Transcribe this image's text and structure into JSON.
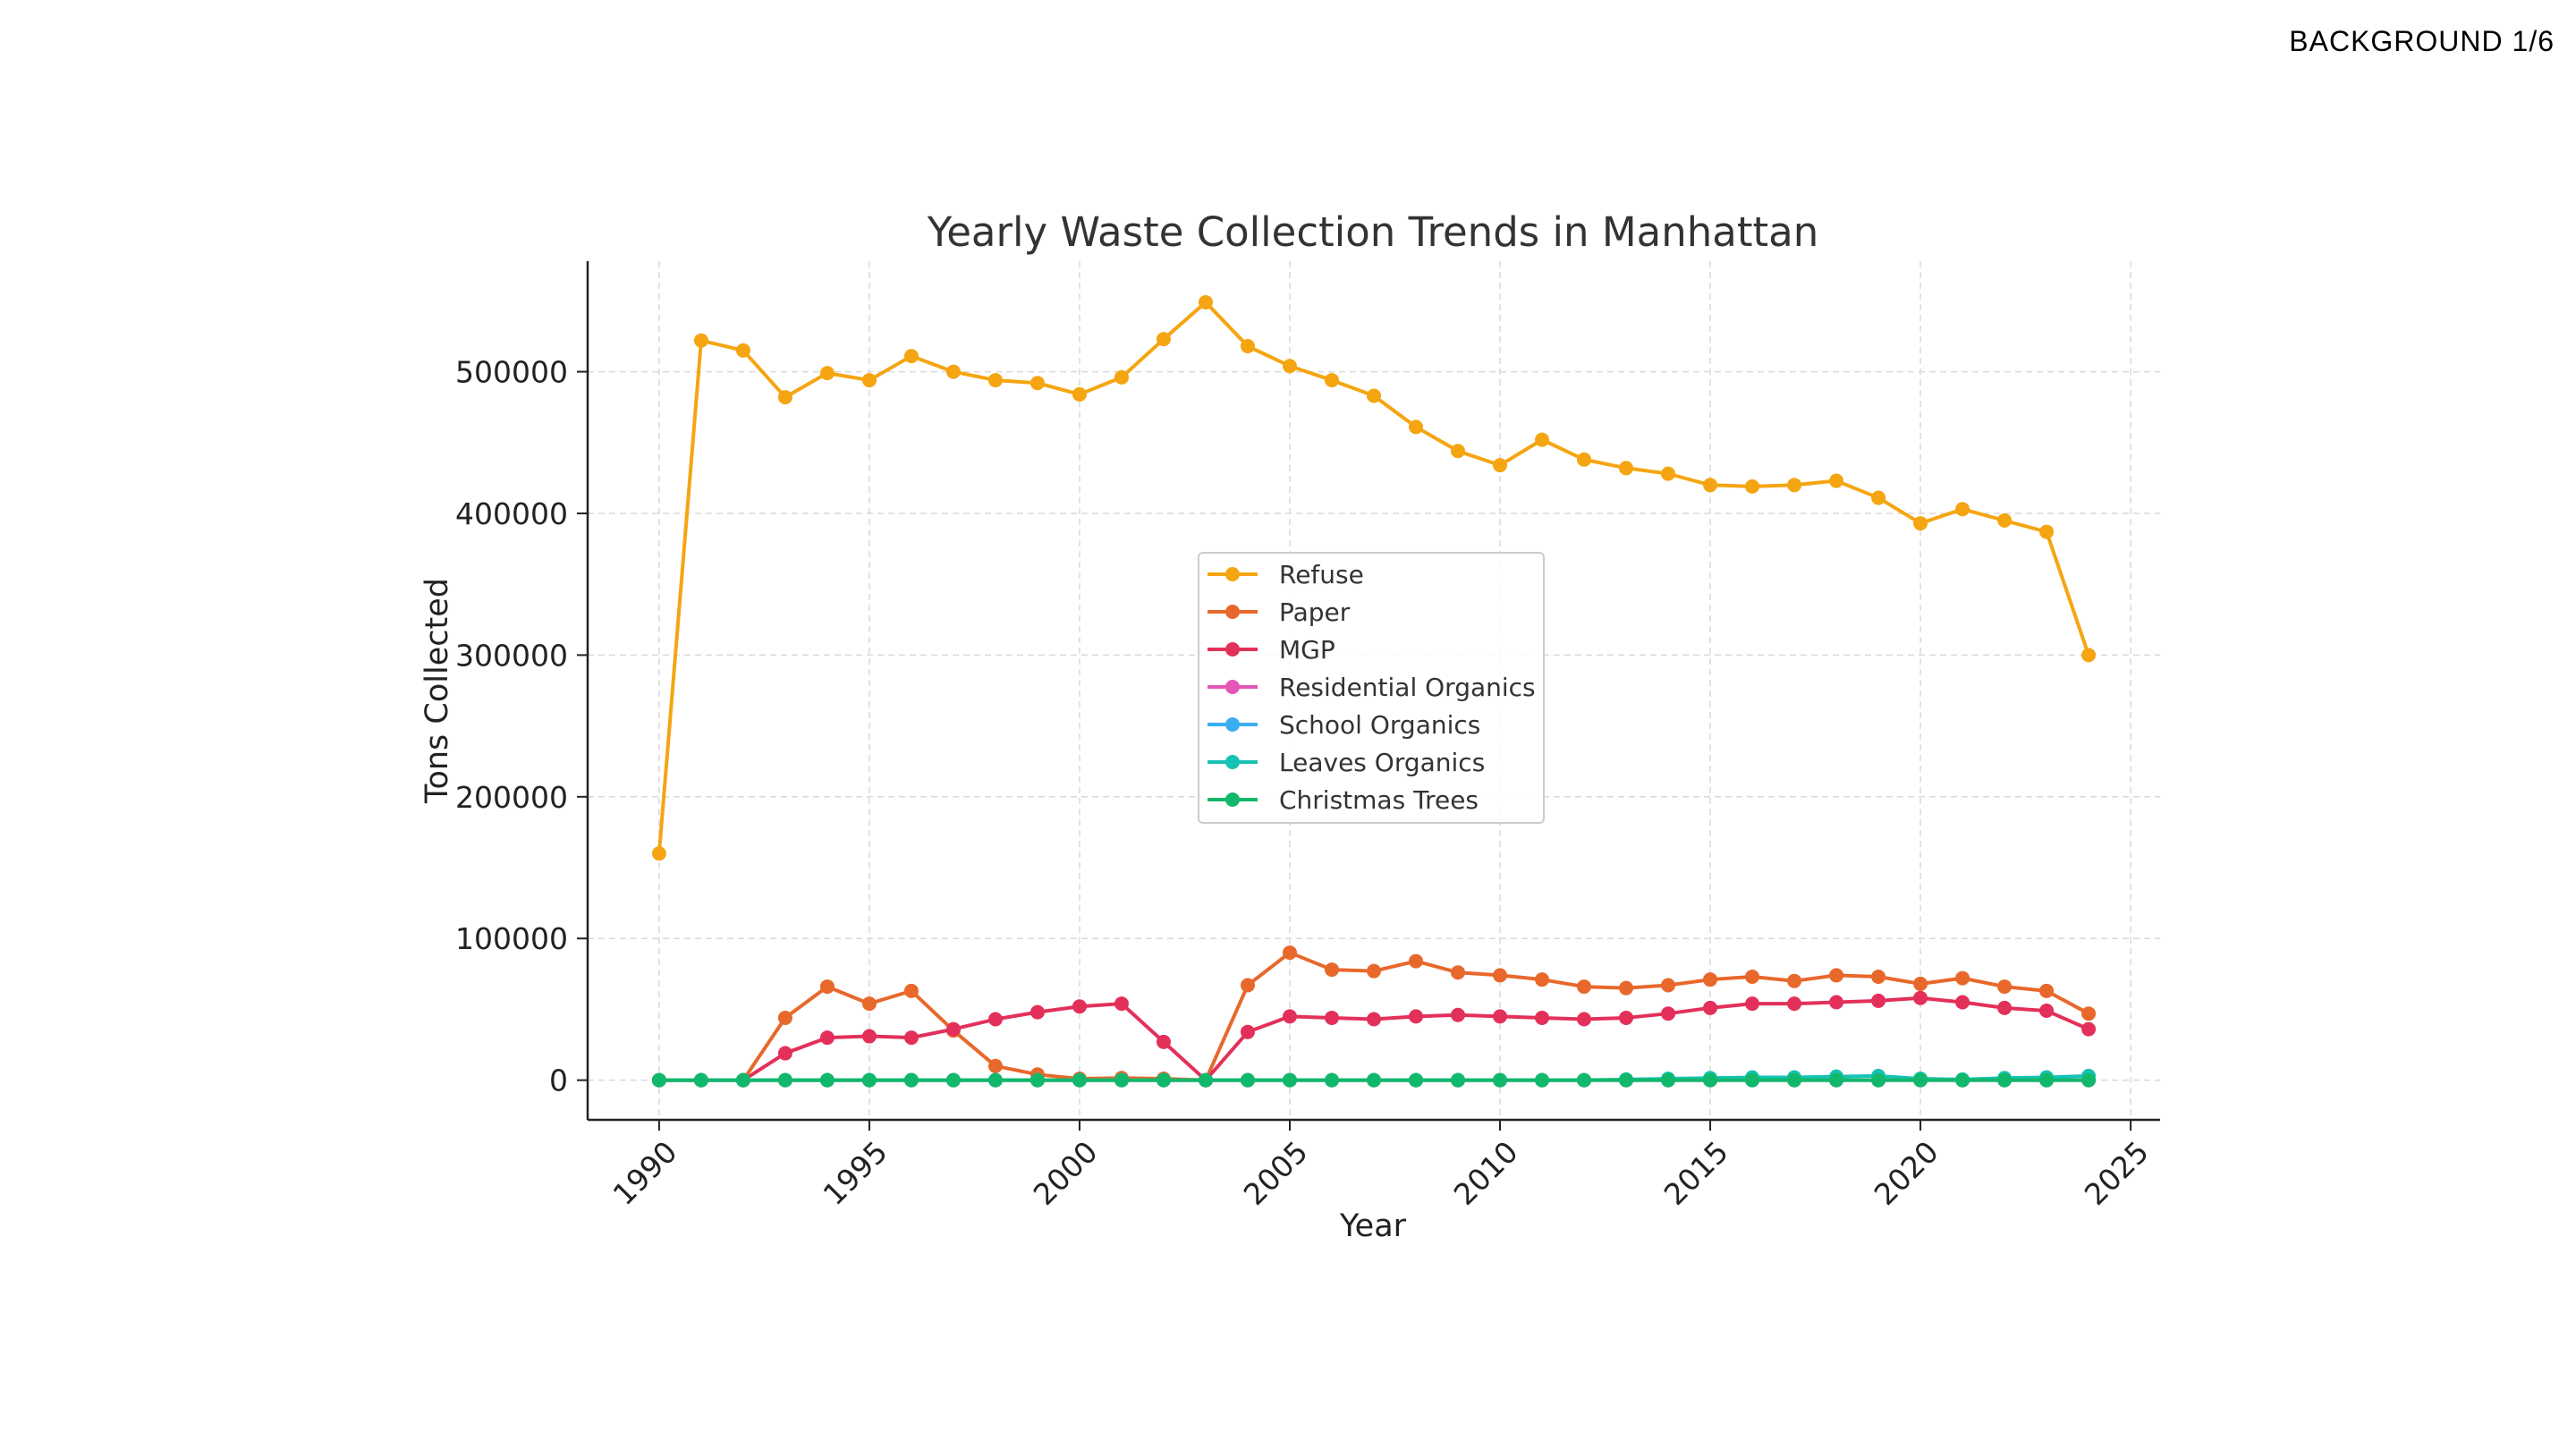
{
  "page_label": "BACKGROUND  1/6",
  "chart_data": {
    "type": "line",
    "title": "Yearly Waste Collection Trends in Manhattan",
    "xlabel": "Year",
    "ylabel": "Tons Collected",
    "xlim": [
      1988.3,
      2025.7
    ],
    "ylim": [
      -28000,
      578000
    ],
    "xticks": [
      1990,
      1995,
      2000,
      2005,
      2010,
      2015,
      2020,
      2025
    ],
    "yticks": [
      0,
      100000,
      200000,
      300000,
      400000,
      500000
    ],
    "grid": true,
    "legend_position": "center",
    "x": [
      1990,
      1991,
      1992,
      1993,
      1994,
      1995,
      1996,
      1997,
      1998,
      1999,
      2000,
      2001,
      2002,
      2003,
      2004,
      2005,
      2006,
      2007,
      2008,
      2009,
      2010,
      2011,
      2012,
      2013,
      2014,
      2015,
      2016,
      2017,
      2018,
      2019,
      2020,
      2021,
      2022,
      2023,
      2024
    ],
    "series": [
      {
        "name": "Refuse",
        "color": "#f5a511",
        "values": [
          160000,
          522000,
          515000,
          482000,
          499000,
          494000,
          511000,
          500000,
          494000,
          492000,
          484000,
          496000,
          523000,
          549000,
          518000,
          504000,
          494000,
          483000,
          461000,
          444000,
          434000,
          452000,
          438000,
          432000,
          428000,
          420000,
          419000,
          420000,
          423000,
          411000,
          393000,
          403000,
          395000,
          387000,
          300000
        ]
      },
      {
        "name": "Paper",
        "color": "#e8682c",
        "values": [
          0,
          0,
          0,
          44000,
          66000,
          54000,
          63000,
          35000,
          10000,
          4000,
          1000,
          1500,
          1000,
          0,
          67000,
          90000,
          78000,
          77000,
          84000,
          76000,
          74000,
          71000,
          66000,
          65000,
          67000,
          71000,
          73000,
          70000,
          74000,
          73000,
          68000,
          72000,
          66000,
          63000,
          47000
        ]
      },
      {
        "name": "MGP",
        "color": "#e3305a",
        "values": [
          0,
          0,
          0,
          19000,
          30000,
          31000,
          30000,
          36000,
          43000,
          48000,
          52000,
          54000,
          27000,
          0,
          34000,
          45000,
          44000,
          43000,
          45000,
          46000,
          45000,
          44000,
          43000,
          44000,
          47000,
          51000,
          54000,
          54000,
          55000,
          56000,
          58000,
          55000,
          51000,
          49000,
          36000
        ]
      },
      {
        "name": "Residential Organics",
        "color": "#e455b5",
        "values": [
          0,
          0,
          0,
          0,
          0,
          0,
          0,
          0,
          0,
          0,
          0,
          0,
          0,
          0,
          0,
          0,
          0,
          0,
          0,
          0,
          0,
          0,
          0,
          0,
          0,
          0,
          0,
          0,
          0,
          0,
          0,
          0,
          0,
          0,
          0
        ]
      },
      {
        "name": "School Organics",
        "color": "#3aaef0",
        "values": [
          0,
          0,
          0,
          0,
          0,
          0,
          0,
          0,
          0,
          0,
          0,
          0,
          0,
          0,
          0,
          0,
          0,
          0,
          0,
          0,
          0,
          0,
          0,
          0,
          0,
          0,
          0,
          0,
          0,
          0,
          0,
          0,
          0,
          0,
          0
        ]
      },
      {
        "name": "Leaves Organics",
        "color": "#16c2b4",
        "values": [
          0,
          0,
          0,
          0,
          0,
          0,
          0,
          0,
          0,
          0,
          0,
          0,
          0,
          0,
          0,
          0,
          0,
          0,
          0,
          0,
          0,
          0,
          0,
          500,
          1000,
          1500,
          2000,
          2000,
          2500,
          3000,
          1000,
          500,
          1500,
          2000,
          3000
        ]
      },
      {
        "name": "Christmas Trees",
        "color": "#12b86a",
        "values": [
          0,
          0,
          0,
          0,
          0,
          0,
          0,
          0,
          0,
          0,
          0,
          0,
          0,
          0,
          0,
          0,
          0,
          0,
          0,
          0,
          0,
          0,
          0,
          0,
          0,
          0,
          0,
          0,
          0,
          0,
          0,
          0,
          0,
          0,
          0
        ]
      }
    ]
  }
}
